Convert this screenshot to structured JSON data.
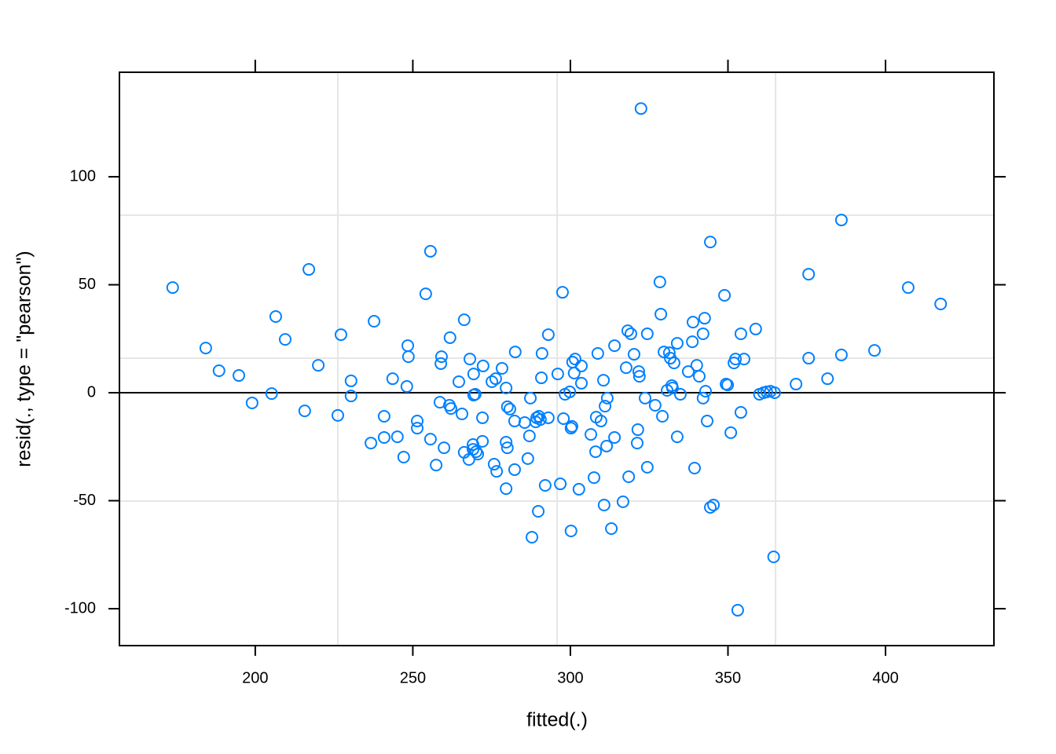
{
  "chart_data": {
    "type": "scatter",
    "xlabel": "fitted(.)",
    "ylabel": "resid(., type = \"pearson\")",
    "xlim": [
      156.9,
      434.4
    ],
    "ylim": [
      -117.1,
      148.4
    ],
    "xticks": [
      200,
      250,
      300,
      350,
      400
    ],
    "yticks": [
      -100,
      -50,
      0,
      50,
      100
    ],
    "vgrid": [
      226.2,
      295.8,
      365.1
    ],
    "hgrid": [
      -50.2,
      16.0,
      82.2
    ],
    "refline": 0,
    "color": "#0080ff",
    "x": [
      173.8,
      184.3,
      188.5,
      194.8,
      199.0,
      205.2,
      206.5,
      209.5,
      215.7,
      217.0,
      220.0,
      226.2,
      227.2,
      230.4,
      230.4,
      236.7,
      237.7,
      240.9,
      240.9,
      243.6,
      245.1,
      247.1,
      248.1,
      248.4,
      248.6,
      251.4,
      251.4,
      254.1,
      255.6,
      255.6,
      257.4,
      258.6,
      258.9,
      259.1,
      259.9,
      261.6,
      261.8,
      262.1,
      264.6,
      265.6,
      266.3,
      266.3,
      267.8,
      268.1,
      269.1,
      269.1,
      269.3,
      269.3,
      269.8,
      270.1,
      270.6,
      272.1,
      272.1,
      272.3,
      275.1,
      276.3,
      275.8,
      276.6,
      278.3,
      279.6,
      279.6,
      279.6,
      280.0,
      280.0,
      280.8,
      282.3,
      282.3,
      282.5,
      285.5,
      286.5,
      287.0,
      287.3,
      287.8,
      289.0,
      289.3,
      289.8,
      290.0,
      290.5,
      290.8,
      291.0,
      292.0,
      293.0,
      293.0,
      296.0,
      296.8,
      297.5,
      297.8,
      298.3,
      299.8,
      300.2,
      300.2,
      300.5,
      300.7,
      301.2,
      301.5,
      302.7,
      303.5,
      303.5,
      306.5,
      307.5,
      308.0,
      308.2,
      308.7,
      309.7,
      310.5,
      310.7,
      311.0,
      311.5,
      311.7,
      313.0,
      314.0,
      314.0,
      316.7,
      317.7,
      318.2,
      318.5,
      319.2,
      320.2,
      321.2,
      321.4,
      321.7,
      321.9,
      322.4,
      323.7,
      324.4,
      324.4,
      326.9,
      328.4,
      328.7,
      329.2,
      329.7,
      330.7,
      331.4,
      331.7,
      332.2,
      332.4,
      332.9,
      333.9,
      333.9,
      334.9,
      337.4,
      338.7,
      338.9,
      339.4,
      340.1,
      340.9,
      342.1,
      342.1,
      342.6,
      342.9,
      343.4,
      344.4,
      344.4,
      345.4,
      348.9,
      349.4,
      349.9,
      350.9,
      351.9,
      352.4,
      353.1,
      354.1,
      354.1,
      355.1,
      358.8,
      360.0,
      361.3,
      362.3,
      363.5,
      364.5,
      364.8,
      371.6,
      375.6,
      375.6,
      381.6,
      386.0,
      386.0,
      396.5,
      407.2,
      417.5
    ],
    "y": [
      48.7,
      20.7,
      10.2,
      8.0,
      -4.7,
      -0.4,
      35.3,
      24.7,
      -8.4,
      57.1,
      12.7,
      -10.5,
      26.9,
      5.5,
      -1.5,
      -23.3,
      33.1,
      -20.7,
      -10.9,
      6.5,
      -20.4,
      -29.8,
      2.9,
      21.8,
      16.7,
      -13.1,
      -16.4,
      45.8,
      65.5,
      -21.5,
      -33.5,
      -4.4,
      13.5,
      16.7,
      -25.5,
      -5.8,
      25.5,
      -7.3,
      5.1,
      -9.8,
      33.8,
      -27.6,
      -30.9,
      15.6,
      -24.0,
      -26.2,
      8.7,
      -1.1,
      -0.7,
      -27.3,
      -28.4,
      -22.5,
      -11.6,
      12.4,
      5.1,
      6.5,
      -33.1,
      -36.4,
      11.3,
      2.2,
      -22.9,
      -44.4,
      -25.5,
      -6.5,
      -7.6,
      -13.1,
      -35.6,
      18.9,
      -13.8,
      -30.5,
      -20.0,
      -2.5,
      -66.9,
      -13.5,
      -11.6,
      -54.9,
      -10.9,
      -12.4,
      6.9,
      18.2,
      -42.9,
      26.9,
      -11.6,
      8.7,
      -42.2,
      46.5,
      -12.0,
      -0.7,
      0.4,
      -64.0,
      -16.4,
      -15.6,
      14.2,
      9.1,
      15.6,
      -44.7,
      12.4,
      4.4,
      -19.3,
      -39.3,
      -27.3,
      -11.3,
      18.2,
      -13.1,
      5.8,
      -52.0,
      -6.2,
      -24.7,
      -2.5,
      -62.9,
      21.8,
      -20.7,
      -50.5,
      11.6,
      28.7,
      -38.9,
      27.3,
      17.8,
      -23.3,
      -17.1,
      9.8,
      7.6,
      131.6,
      -2.5,
      -34.5,
      27.3,
      -5.8,
      51.3,
      36.4,
      -10.9,
      18.9,
      1.1,
      18.5,
      16.0,
      3.3,
      2.2,
      13.8,
      22.9,
      -20.4,
      -0.7,
      9.8,
      23.6,
      32.7,
      -34.9,
      12.7,
      7.6,
      27.3,
      -2.5,
      34.5,
      0.7,
      -13.1,
      69.8,
      -53.1,
      -52.0,
      45.1,
      4.0,
      3.6,
      -18.5,
      13.8,
      15.6,
      -100.7,
      27.3,
      -9.1,
      15.6,
      29.5,
      -0.7,
      0,
      0.4,
      0.7,
      -76.0,
      0,
      4.0,
      54.9,
      16.0,
      6.5,
      80.0,
      17.5,
      19.6,
      48.7,
      41.1
    ]
  }
}
